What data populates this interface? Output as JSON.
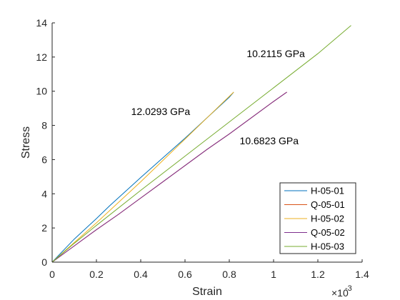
{
  "chart_data": {
    "type": "line",
    "xlabel": "Strain",
    "ylabel": "Stress",
    "x_exponent_label": "×10",
    "x_exponent_power": "-3",
    "xlim": [
      0,
      1.4
    ],
    "ylim": [
      0,
      14
    ],
    "xticks": [
      "0",
      "0.2",
      "0.4",
      "0.6",
      "0.8",
      "1",
      "1.2",
      "1.4"
    ],
    "yticks": [
      "0",
      "2",
      "4",
      "6",
      "8",
      "10",
      "12",
      "14"
    ],
    "grid": false,
    "legend_position": "bottom-right",
    "series": [
      {
        "name": "H-05-01",
        "color": "#0072BD",
        "x": [
          0,
          0.1,
          0.2,
          0.26,
          0.4,
          0.5,
          0.6,
          0.7,
          0.8,
          0.82
        ],
        "y": [
          0,
          1.35,
          2.55,
          3.3,
          4.95,
          6.1,
          7.25,
          8.45,
          9.65,
          9.95
        ]
      },
      {
        "name": "Q-05-01",
        "color": "#D95319",
        "x": [
          0,
          0.1,
          0.2,
          0.3,
          0.4,
          0.5,
          0.6,
          0.7,
          0.8,
          1.0,
          1.06
        ],
        "y": [
          0,
          0.95,
          1.9,
          2.8,
          3.75,
          4.7,
          5.65,
          6.6,
          7.5,
          9.4,
          9.95
        ]
      },
      {
        "name": "H-05-02",
        "color": "#EDB120",
        "x": [
          0,
          0.1,
          0.2,
          0.3,
          0.4,
          0.5,
          0.6,
          0.7,
          0.8,
          0.82
        ],
        "y": [
          0,
          1.15,
          2.3,
          3.5,
          4.7,
          5.95,
          7.2,
          8.45,
          9.7,
          9.95
        ]
      },
      {
        "name": "Q-05-02",
        "color": "#7E2F8E",
        "x": [
          0,
          0.1,
          0.2,
          0.3,
          0.4,
          0.5,
          0.6,
          0.7,
          0.8,
          1.0,
          1.06
        ],
        "y": [
          0,
          0.95,
          1.9,
          2.8,
          3.75,
          4.7,
          5.65,
          6.6,
          7.5,
          9.4,
          9.95
        ]
      },
      {
        "name": "H-05-03",
        "color": "#77AC30",
        "x": [
          0,
          0.1,
          0.2,
          0.4,
          0.6,
          0.8,
          1.0,
          1.2,
          1.35
        ],
        "y": [
          0,
          1.1,
          2.15,
          4.2,
          6.2,
          8.2,
          10.2,
          12.2,
          13.85
        ]
      }
    ],
    "annotations": [
      {
        "text": "12.0293 GPa",
        "x": 0.49,
        "y": 8.6
      },
      {
        "text": "10.2115 GPa",
        "x": 1.01,
        "y": 12.0
      },
      {
        "text": "10.6823 GPa",
        "x": 0.98,
        "y": 6.9
      }
    ]
  }
}
